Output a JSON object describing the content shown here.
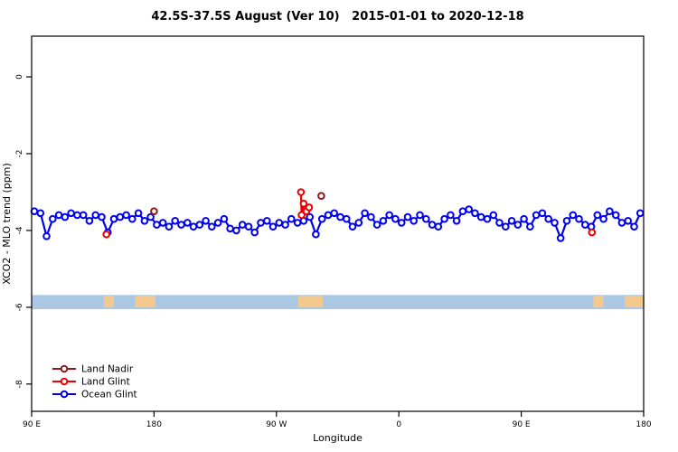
{
  "chart_data": {
    "type": "line",
    "title": "42.5S-37.5S August (Ver 10)   2015-01-01 to 2020-12-18",
    "xlabel": "Longitude",
    "ylabel": "XCO2 - MLO trend (ppm)",
    "xlim": [
      90,
      540
    ],
    "ylim": [
      -8.71,
      1.06
    ],
    "grid": false,
    "legend_position": "bottom-left",
    "xticks": [
      {
        "v": 90,
        "label": "90 E"
      },
      {
        "v": 180,
        "label": "180"
      },
      {
        "v": 270,
        "label": "90 W"
      },
      {
        "v": 360,
        "label": "0"
      },
      {
        "v": 450,
        "label": "90 E"
      },
      {
        "v": 540,
        "label": "180"
      }
    ],
    "yticks": [
      {
        "v": 0,
        "label": "0"
      },
      {
        "v": -2,
        "label": "-2"
      },
      {
        "v": -4,
        "label": "-4"
      },
      {
        "v": -6,
        "label": "-6"
      },
      {
        "v": -8,
        "label": "-8"
      }
    ],
    "map_band": {
      "y_top": -5.68,
      "y_bottom": -6.05,
      "ocean_color": "#aac7e4",
      "land_color": "#f4c98e",
      "land_segments": [
        [
          143,
          150.5
        ],
        [
          166,
          181
        ],
        [
          286,
          304
        ],
        [
          503,
          510.5
        ],
        [
          526,
          540.5
        ]
      ]
    },
    "series": [
      {
        "name": "Land Nadir",
        "color": "#8b1a1a",
        "segments": [
          {
            "x": [
              180
            ],
            "y": [
              -3.5
            ]
          },
          {
            "x": [
              303
            ],
            "y": [
              -3.1
            ]
          }
        ]
      },
      {
        "name": "Land Glint",
        "color": "#ee0000",
        "segments": [
          {
            "x": [
              145
            ],
            "y": [
              -4.1
            ]
          },
          {
            "x": [
              288,
              288.5,
              290,
              292,
              294
            ],
            "y": [
              -3.0,
              -3.6,
              -3.3,
              -3.5,
              -3.4
            ]
          },
          {
            "x": [
              502
            ],
            "y": [
              -4.05
            ]
          }
        ]
      },
      {
        "name": "Ocean Glint",
        "color": "#0000ee",
        "segments": [
          {
            "x": [
              92,
              96.5,
              101,
              105.5,
              110,
              114.5,
              119,
              123.5,
              128,
              132.5,
              137,
              141.5,
              146,
              150.5,
              155,
              159.5,
              164,
              168.5,
              173,
              177.5,
              182,
              186.5,
              191,
              195.5,
              200,
              204.5,
              209,
              213.5,
              218,
              222.5,
              227,
              231.5,
              236,
              240.5,
              245,
              249.5,
              254,
              258.5,
              263,
              267.5,
              272,
              276.5,
              281,
              285.5,
              290,
              294.5,
              299,
              303.5,
              308,
              312.5,
              317,
              321.5,
              326,
              330.5,
              335,
              339.5,
              344,
              348.5,
              353,
              357.5,
              362,
              366.5,
              371,
              375.5,
              380,
              384.5,
              389,
              393.5,
              398,
              402.5,
              407,
              411.5,
              416,
              420.5,
              425,
              429.5,
              434,
              438.5,
              443,
              447.5,
              452,
              456.5,
              461,
              465.5,
              470,
              474.5,
              479,
              483.5,
              488,
              492.5,
              497,
              501.5,
              506,
              510.5,
              515,
              519.5,
              524,
              528.5,
              533,
              537.5
            ],
            "y": [
              -3.5,
              -3.55,
              -4.15,
              -3.7,
              -3.6,
              -3.65,
              -3.55,
              -3.6,
              -3.6,
              -3.75,
              -3.6,
              -3.65,
              -4.05,
              -3.7,
              -3.65,
              -3.6,
              -3.7,
              -3.55,
              -3.75,
              -3.65,
              -3.85,
              -3.8,
              -3.9,
              -3.75,
              -3.85,
              -3.8,
              -3.9,
              -3.85,
              -3.75,
              -3.9,
              -3.8,
              -3.7,
              -3.95,
              -4.0,
              -3.85,
              -3.9,
              -4.05,
              -3.8,
              -3.75,
              -3.9,
              -3.8,
              -3.85,
              -3.7,
              -3.8,
              -3.75,
              -3.65,
              -4.1,
              -3.7,
              -3.6,
              -3.55,
              -3.65,
              -3.7,
              -3.9,
              -3.8,
              -3.55,
              -3.65,
              -3.85,
              -3.75,
              -3.6,
              -3.7,
              -3.8,
              -3.65,
              -3.75,
              -3.6,
              -3.7,
              -3.85,
              -3.9,
              -3.7,
              -3.6,
              -3.75,
              -3.5,
              -3.45,
              -3.55,
              -3.65,
              -3.7,
              -3.6,
              -3.8,
              -3.9,
              -3.75,
              -3.85,
              -3.7,
              -3.9,
              -3.6,
              -3.55,
              -3.7,
              -3.8,
              -4.2,
              -3.75,
              -3.6,
              -3.7,
              -3.85,
              -3.9,
              -3.6,
              -3.7,
              -3.5,
              -3.6,
              -3.8,
              -3.75,
              -3.9,
              -3.55
            ]
          }
        ]
      }
    ],
    "legend": [
      {
        "label": "Land Nadir",
        "color": "#8b1a1a"
      },
      {
        "label": "Land Glint",
        "color": "#ee0000"
      },
      {
        "label": "Ocean Glint",
        "color": "#0000ee"
      }
    ]
  }
}
